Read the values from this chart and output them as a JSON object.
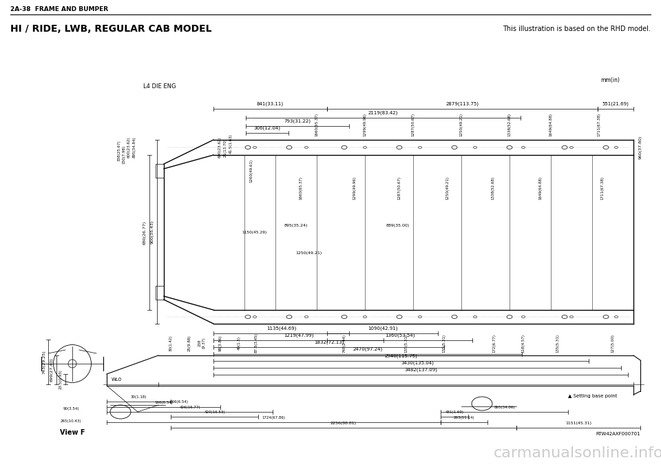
{
  "page_header": "2A-38  FRAME AND BUMPER",
  "title_left": "HI / RIDE, LWB, REGULAR CAB MODEL",
  "title_right": "This illustration is based on the RHD model.",
  "unit_label": "mm(in)",
  "diagram_label": "L4 DIE ENG",
  "view_label": "View F",
  "ref_code": "RTW42AXF000701",
  "watermark": "carmanualsonline.info",
  "bg_color": "#ffffff",
  "line_color": "#000000"
}
